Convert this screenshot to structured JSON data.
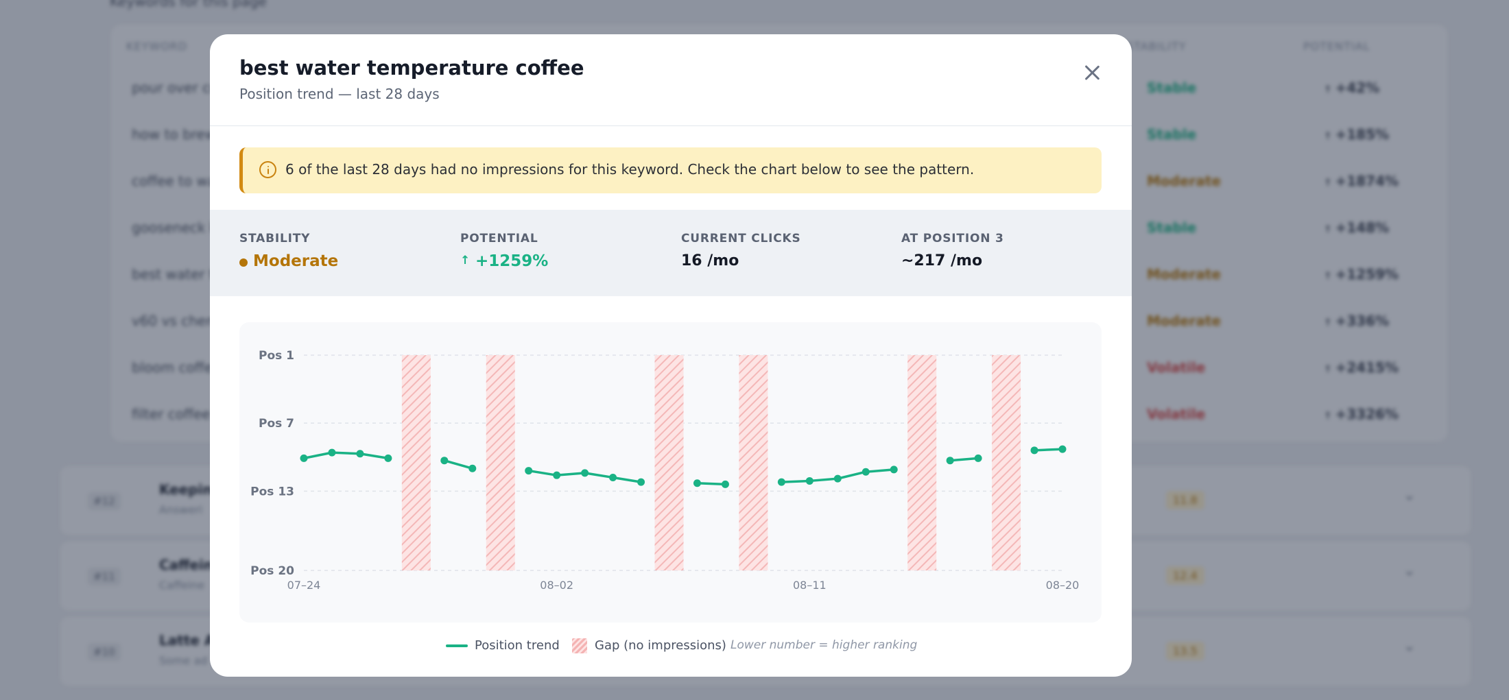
{
  "background": {
    "top_label": "Keywords for this page",
    "table_headers": [
      "Keyword",
      "Stability",
      "Potential"
    ],
    "rows": [
      {
        "keyword": "pour over co",
        "stability": "Stable",
        "color": "#1ab285",
        "potential": "+42%"
      },
      {
        "keyword": "how to brew",
        "stability": "Stable",
        "color": "#1ab285",
        "potential": "+185%"
      },
      {
        "keyword": "coffee to wa",
        "stability": "Moderate",
        "color": "#b47509",
        "potential": "+1874%"
      },
      {
        "keyword": "gooseneck k",
        "stability": "Stable",
        "color": "#1ab285",
        "potential": "+148%"
      },
      {
        "keyword": "best water t",
        "stability": "Moderate",
        "color": "#b47509",
        "potential": "+1259%"
      },
      {
        "keyword": "v60 vs chem",
        "stability": "Moderate",
        "color": "#b47509",
        "potential": "+336%"
      },
      {
        "keyword": "bloom coffe",
        "stability": "Volatile",
        "color": "#d64545",
        "potential": "+2415%"
      },
      {
        "keyword": "filter coffee",
        "stability": "Volatile",
        "color": "#d64545",
        "potential": "+3326%"
      }
    ],
    "cards": [
      {
        "rank": "#12",
        "title": "Keeping",
        "subtitle": "Answeri",
        "score": "11.8"
      },
      {
        "rank": "#11",
        "title": "Caffeine",
        "subtitle": "Caffeine",
        "score": "12.4"
      },
      {
        "rank": "#10",
        "title": "Latte Art",
        "subtitle": "Some ad",
        "score": "13.5"
      }
    ]
  },
  "modal": {
    "title": "best water temperature coffee",
    "subtitle": "Position trend — last 28 days",
    "alert": "6 of the last 28 days had no impressions for this keyword. Check the chart below to see the pattern.",
    "stats": {
      "stability": {
        "label": "STABILITY",
        "value": "Moderate"
      },
      "potential": {
        "label": "POTENTIAL",
        "value": "+1259%"
      },
      "current_clicks": {
        "label": "CURRENT CLICKS",
        "value": "16 /mo"
      },
      "at_position": {
        "label": "AT POSITION 3",
        "value": "~217 /mo"
      }
    },
    "legend": {
      "trend": "Position trend",
      "gap": "Gap (no impressions)",
      "note": "Lower number = higher ranking"
    }
  },
  "colors": {
    "accent_green": "#1ab285",
    "moderate_amber": "#b47509",
    "gap_red": "#f4b3b3",
    "alert_bg": "#fdf1c3"
  },
  "chart_data": {
    "type": "line",
    "y_ticks": [
      {
        "value": 1,
        "label": "Pos 1"
      },
      {
        "value": 7,
        "label": "Pos 7"
      },
      {
        "value": 13,
        "label": "Pos 13"
      },
      {
        "value": 20,
        "label": "Pos 20"
      }
    ],
    "ylim": [
      1,
      20
    ],
    "y_inverted": true,
    "x_ticks": [
      {
        "day": 0,
        "label": "07–24"
      },
      {
        "day": 9,
        "label": "08–02"
      },
      {
        "day": 18,
        "label": "08–11"
      },
      {
        "day": 27,
        "label": "08–20"
      }
    ],
    "series": [
      {
        "name": "Position trend",
        "color": "#1ab285",
        "values": [
          10.1,
          9.6,
          9.7,
          10.1,
          null,
          10.3,
          11.0,
          null,
          11.2,
          11.6,
          11.4,
          11.8,
          12.2,
          null,
          12.3,
          12.4,
          null,
          12.2,
          12.1,
          11.9,
          11.3,
          11.1,
          null,
          10.3,
          10.1,
          null,
          9.4,
          9.3
        ]
      }
    ],
    "gaps": [
      4,
      7,
      13,
      16,
      22,
      25
    ],
    "legend": [
      "Position trend",
      "Gap (no impressions)"
    ],
    "grid": true
  }
}
